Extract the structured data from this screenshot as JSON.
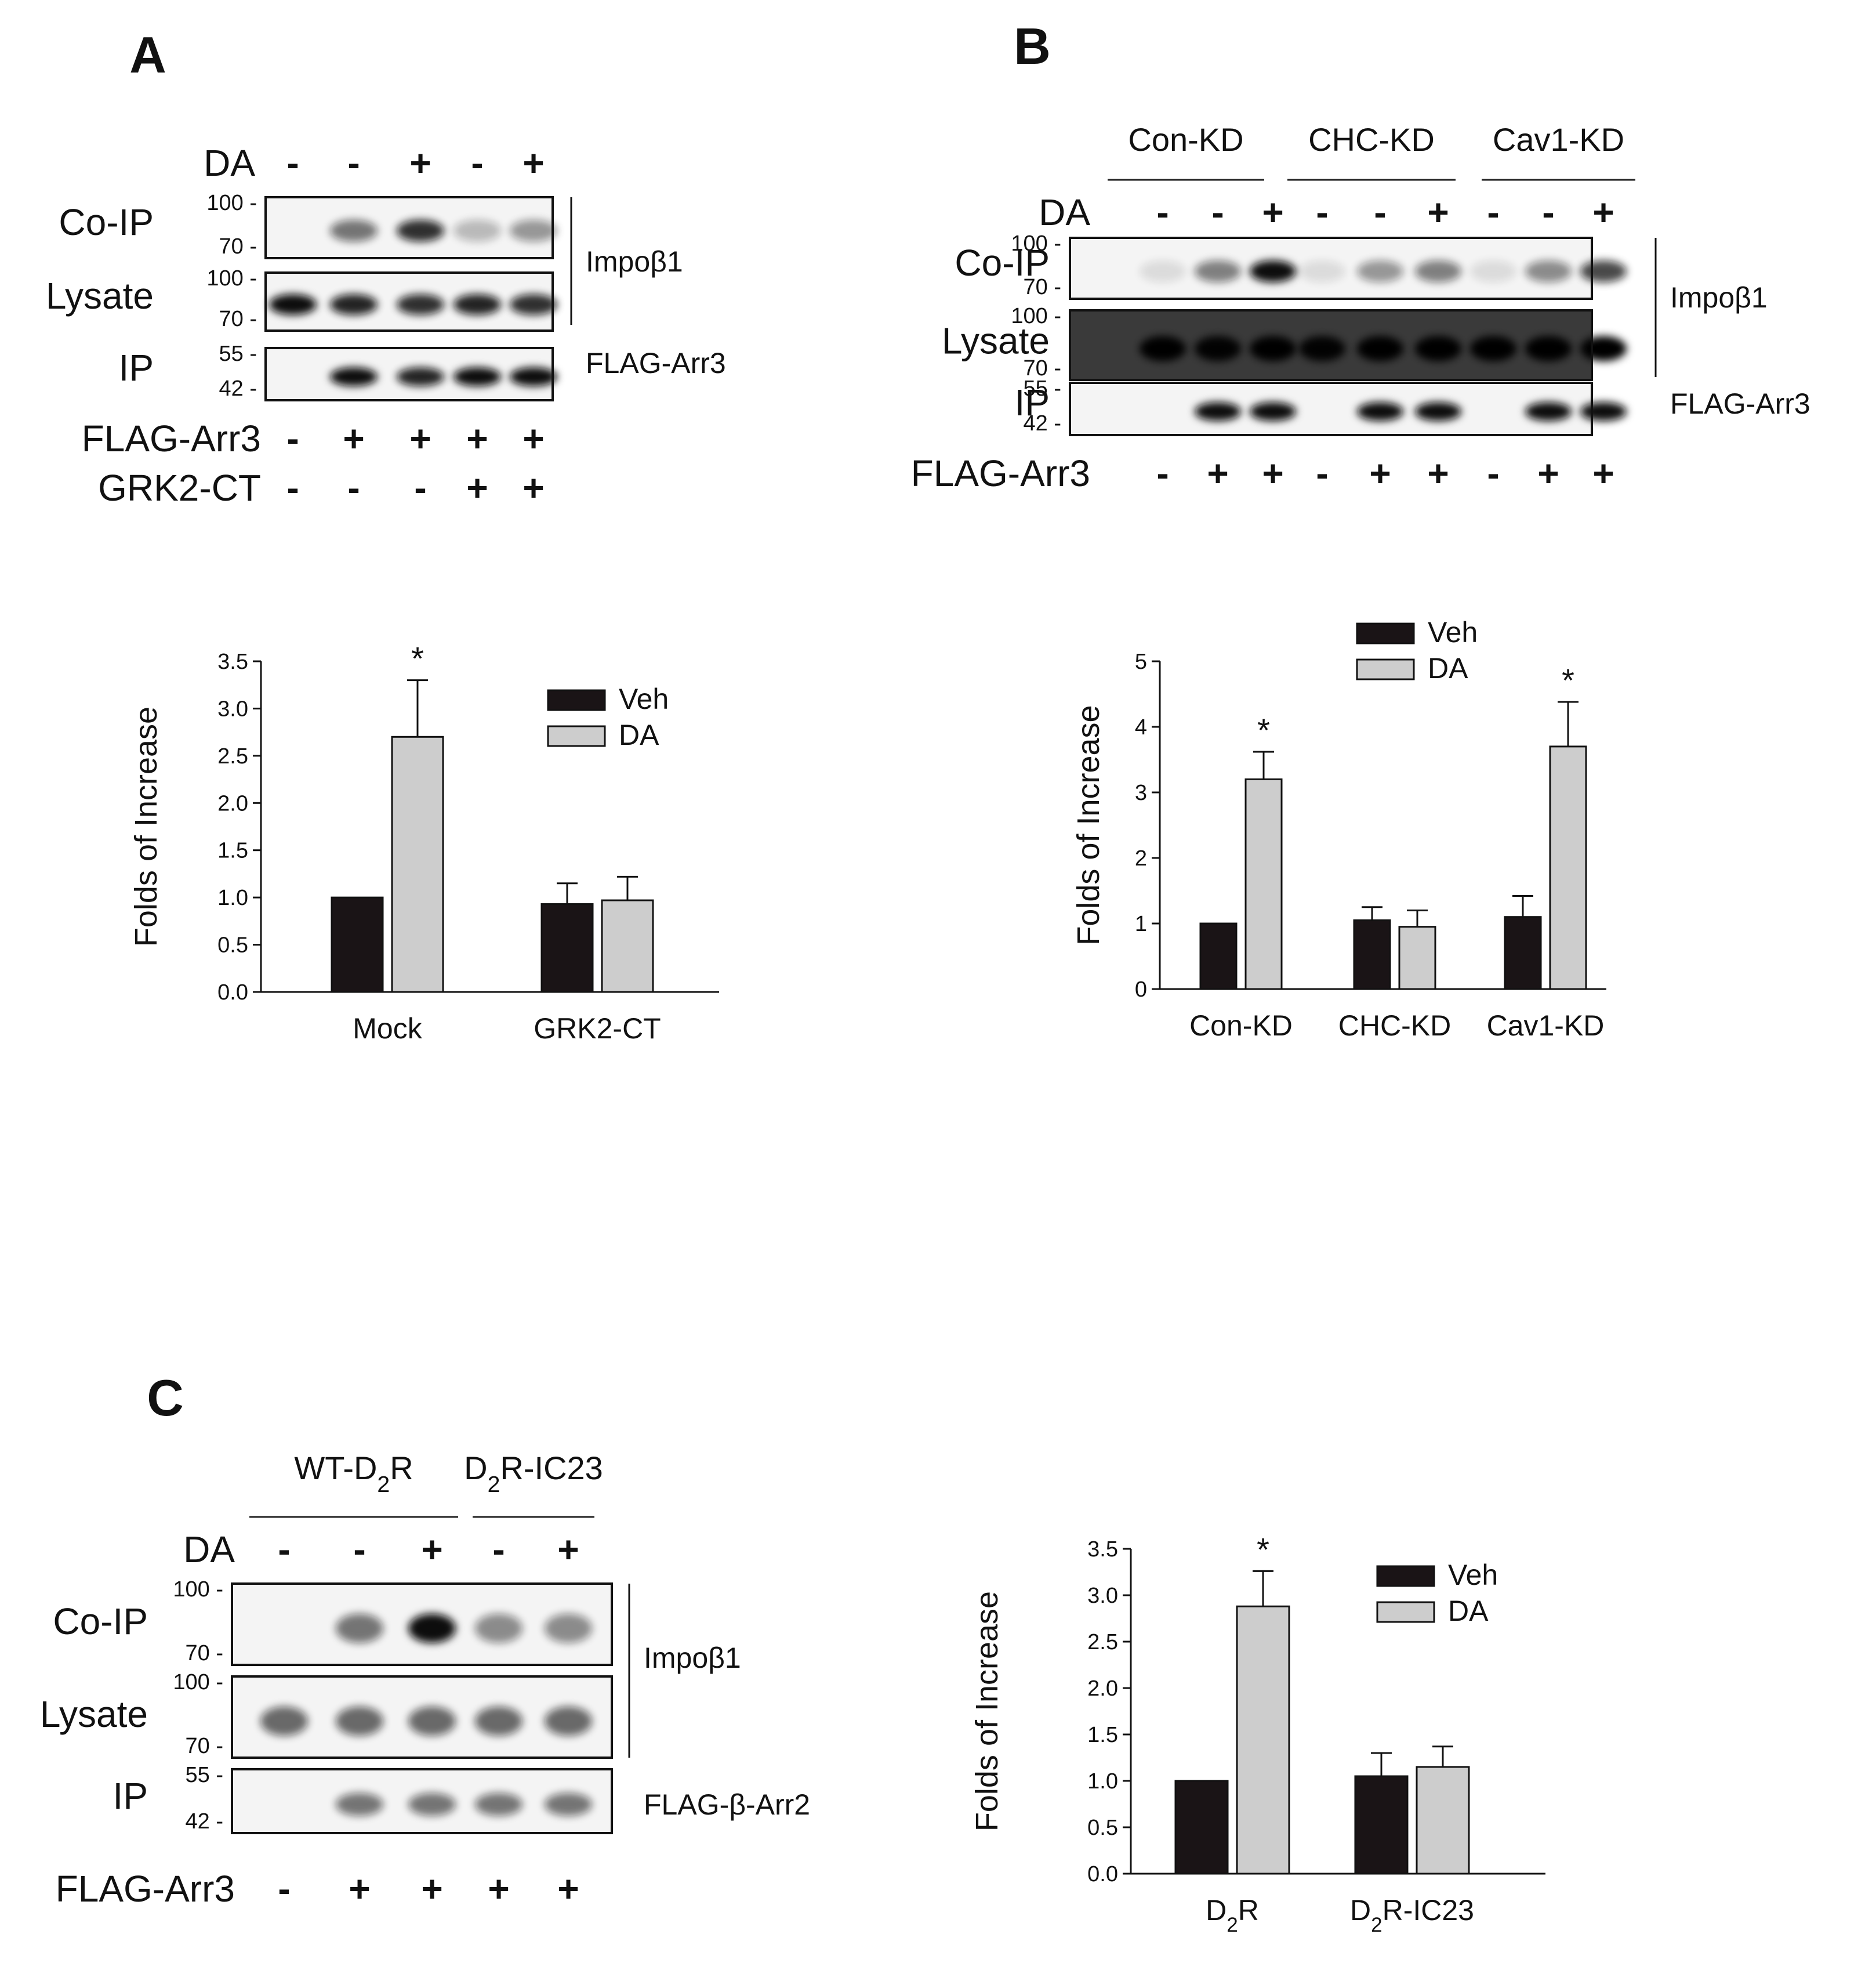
{
  "panels": [
    {
      "letter": "A",
      "blot": {
        "groups": [],
        "lanes": 5,
        "treatments_top": [
          {
            "label": "DA",
            "signs": [
              "-",
              "-",
              "+",
              "-",
              "+"
            ]
          }
        ],
        "strips": [
          {
            "row": "Co-IP",
            "mw": [
              "100",
              "70"
            ],
            "bands": [
              0,
              0.55,
              0.85,
              0.25,
              0.4
            ]
          },
          {
            "row": "Lysate",
            "mw": [
              "100",
              "70"
            ],
            "bands": [
              1,
              0.9,
              0.85,
              0.9,
              0.85
            ]
          },
          {
            "row": "IP",
            "mw": [
              "55",
              "42"
            ],
            "bands": [
              0,
              1,
              0.9,
              1,
              1
            ]
          }
        ],
        "antibodies": [
          {
            "label": "Impoβ1",
            "spans": [
              0,
              1
            ]
          },
          {
            "label": "FLAG-Arr3",
            "spans": [
              2,
              2
            ]
          }
        ],
        "treatments_bottom": [
          {
            "label": "FLAG-Arr3",
            "signs": [
              "-",
              "+",
              "+",
              "+",
              "+"
            ]
          },
          {
            "label": "GRK2-CT",
            "signs": [
              "-",
              "-",
              "-",
              "+",
              "+"
            ]
          }
        ]
      }
    },
    {
      "letter": "B",
      "blot": {
        "groups": [
          "Con-KD",
          "CHC-KD",
          "Cav1-KD"
        ],
        "lanes": 9,
        "treatments_top": [
          {
            "label": "DA",
            "signs": [
              "-",
              "-",
              "+",
              "-",
              "-",
              "+",
              "-",
              "-",
              "+"
            ]
          }
        ],
        "strips": [
          {
            "row": "Co-IP",
            "mw": [
              "100",
              "70"
            ],
            "bands": [
              0.1,
              0.5,
              1,
              0.1,
              0.4,
              0.5,
              0.1,
              0.45,
              0.75
            ]
          },
          {
            "row": "Lysate",
            "mw": [
              "100",
              "70"
            ],
            "bands": [
              1,
              0.95,
              1,
              0.95,
              1,
              1,
              1,
              1,
              1
            ],
            "dark": true
          },
          {
            "row": "IP",
            "mw": [
              "55",
              "42"
            ],
            "bands": [
              0,
              1,
              1,
              0,
              1,
              1,
              0,
              1,
              1
            ]
          }
        ],
        "antibodies": [
          {
            "label": "Impoβ1",
            "spans": [
              0,
              1
            ]
          },
          {
            "label": "FLAG-Arr3",
            "spans": [
              2,
              2
            ]
          }
        ],
        "treatments_bottom": [
          {
            "label": "FLAG-Arr3",
            "signs": [
              "-",
              "+",
              "+",
              "-",
              "+",
              "+",
              "-",
              "+",
              "+"
            ]
          }
        ]
      }
    },
    {
      "letter": "C",
      "blot": {
        "groups": [
          "WT-D2R",
          "D2R-IC23"
        ],
        "lanes": 5,
        "treatments_top": [
          {
            "label": "DA",
            "signs": [
              "-",
              "-",
              "+",
              "-",
              "+"
            ]
          }
        ],
        "strips": [
          {
            "row": "Co-IP",
            "mw": [
              "100",
              "70"
            ],
            "bands": [
              0,
              0.55,
              1,
              0.45,
              0.45
            ]
          },
          {
            "row": "Lysate",
            "mw": [
              "100",
              "70"
            ],
            "bands": [
              0.6,
              0.6,
              0.6,
              0.6,
              0.6
            ]
          },
          {
            "row": "IP",
            "mw": [
              "55",
              "42"
            ],
            "bands": [
              0,
              0.55,
              0.55,
              0.55,
              0.55
            ]
          }
        ],
        "antibodies": [
          {
            "label": "Impoβ1",
            "spans": [
              0,
              1
            ]
          },
          {
            "label": "FLAG-β-Arr2",
            "spans": [
              2,
              2
            ]
          }
        ],
        "treatments_bottom": [
          {
            "label": "FLAG-Arr3",
            "signs": [
              "-",
              "+",
              "+",
              "+",
              "+"
            ]
          }
        ]
      }
    }
  ],
  "chart_data": [
    {
      "type": "bar",
      "panel": "A",
      "categories": [
        "Mock",
        "GRK2-CT"
      ],
      "series": [
        {
          "name": "Veh",
          "values": [
            1.0,
            0.93
          ],
          "errors": [
            0,
            0.22
          ],
          "color": "#1a1416"
        },
        {
          "name": "DA",
          "values": [
            2.7,
            0.97
          ],
          "errors": [
            0.6,
            0.25
          ],
          "color": "#cdcdcd"
        }
      ],
      "significance": [
        {
          "category": 0,
          "series": 1,
          "label": "*"
        }
      ],
      "ylabel": "Folds of Increase",
      "ylim": [
        0,
        3.5
      ],
      "yticks": [
        "0.0",
        "0.5",
        "1.0",
        "1.5",
        "2.0",
        "2.5",
        "3.0",
        "3.5"
      ],
      "legend": "top-right",
      "grid": false
    },
    {
      "type": "bar",
      "panel": "B",
      "categories": [
        "Con-KD",
        "CHC-KD",
        "Cav1-KD"
      ],
      "series": [
        {
          "name": "Veh",
          "values": [
            1.0,
            1.05,
            1.1
          ],
          "errors": [
            0,
            0.2,
            0.32
          ],
          "color": "#1a1416"
        },
        {
          "name": "DA",
          "values": [
            3.2,
            0.95,
            3.7
          ],
          "errors": [
            0.42,
            0.25,
            0.68
          ],
          "color": "#cdcdcd"
        }
      ],
      "significance": [
        {
          "category": 0,
          "series": 1,
          "label": "*"
        },
        {
          "category": 2,
          "series": 1,
          "label": "*"
        }
      ],
      "ylabel": "Folds of Increase",
      "ylim": [
        0,
        5
      ],
      "yticks": [
        "0",
        "1",
        "2",
        "3",
        "4",
        "5"
      ],
      "legend": "top-center",
      "grid": false
    },
    {
      "type": "bar",
      "panel": "C",
      "categories": [
        "D2R",
        "D2R-IC23"
      ],
      "series": [
        {
          "name": "Veh",
          "values": [
            1.0,
            1.05
          ],
          "errors": [
            0,
            0.25
          ],
          "color": "#1a1416"
        },
        {
          "name": "DA",
          "values": [
            2.88,
            1.15
          ],
          "errors": [
            0.38,
            0.22
          ],
          "color": "#cdcdcd"
        }
      ],
      "significance": [
        {
          "category": 0,
          "series": 1,
          "label": "*"
        }
      ],
      "ylabel": "Folds of Increase",
      "ylim": [
        0,
        3.5
      ],
      "yticks": [
        "0.0",
        "0.5",
        "1.0",
        "1.5",
        "2.0",
        "2.5",
        "3.0",
        "3.5"
      ],
      "legend": "top-right",
      "grid": false
    }
  ]
}
